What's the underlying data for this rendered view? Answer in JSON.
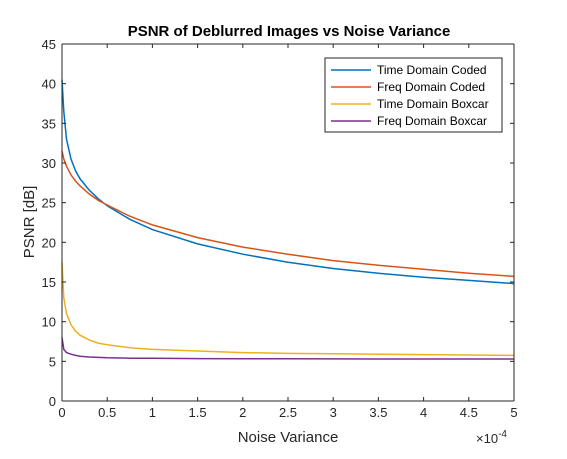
{
  "chart_data": {
    "type": "line",
    "title": "PSNR of Deblurred Images vs Noise Variance",
    "xlabel": "Noise Variance",
    "ylabel": "PSNR [dB]",
    "x_exponent_base": "×10",
    "x_exponent_power": "-4",
    "xlim": [
      0,
      5
    ],
    "ylim": [
      0,
      45
    ],
    "xticks": [
      "0",
      "0.5",
      "1",
      "1.5",
      "2",
      "2.5",
      "3",
      "3.5",
      "4",
      "4.5",
      "5"
    ],
    "yticks": [
      "0",
      "5",
      "10",
      "15",
      "20",
      "25",
      "30",
      "35",
      "40",
      "45"
    ],
    "grid": false,
    "legend_position": "top-right",
    "series": [
      {
        "name": "Time Domain Coded",
        "color": "#0072BD",
        "x": [
          0,
          0.02,
          0.05,
          0.1,
          0.15,
          0.2,
          0.3,
          0.4,
          0.5,
          0.75,
          1,
          1.5,
          2,
          2.5,
          3,
          3.5,
          4,
          4.5,
          5
        ],
        "y": [
          40.5,
          36.5,
          33.0,
          30.5,
          29.0,
          28.0,
          26.6,
          25.5,
          24.6,
          22.9,
          21.6,
          19.8,
          18.5,
          17.5,
          16.7,
          16.1,
          15.6,
          15.2,
          14.8
        ]
      },
      {
        "name": "Freq Domain Coded",
        "color": "#D95319",
        "x": [
          0,
          0.02,
          0.05,
          0.1,
          0.15,
          0.2,
          0.3,
          0.4,
          0.5,
          0.75,
          1,
          1.5,
          2,
          2.5,
          3,
          3.5,
          4,
          4.5,
          5
        ],
        "y": [
          31.5,
          30.5,
          29.6,
          28.5,
          27.7,
          27.1,
          26.1,
          25.3,
          24.7,
          23.3,
          22.2,
          20.6,
          19.4,
          18.5,
          17.7,
          17.1,
          16.6,
          16.1,
          15.7
        ]
      },
      {
        "name": "Time Domain Boxcar",
        "color": "#EDB120",
        "x": [
          0,
          0.02,
          0.05,
          0.1,
          0.15,
          0.2,
          0.3,
          0.4,
          0.5,
          0.75,
          1,
          1.5,
          2,
          2.5,
          3,
          3.5,
          4,
          4.5,
          5
        ],
        "y": [
          17.5,
          13.0,
          11.0,
          9.6,
          8.8,
          8.3,
          7.7,
          7.3,
          7.1,
          6.7,
          6.5,
          6.3,
          6.1,
          6.0,
          5.95,
          5.9,
          5.85,
          5.8,
          5.75
        ]
      },
      {
        "name": "Freq Domain Boxcar",
        "color": "#7E2F8E",
        "x": [
          0,
          0.02,
          0.05,
          0.1,
          0.15,
          0.2,
          0.3,
          0.4,
          0.5,
          0.75,
          1,
          1.5,
          2,
          2.5,
          3,
          3.5,
          4,
          4.5,
          5
        ],
        "y": [
          8.0,
          6.5,
          6.1,
          5.9,
          5.75,
          5.65,
          5.55,
          5.5,
          5.45,
          5.4,
          5.38,
          5.35,
          5.33,
          5.32,
          5.31,
          5.3,
          5.3,
          5.3,
          5.3
        ]
      }
    ]
  }
}
